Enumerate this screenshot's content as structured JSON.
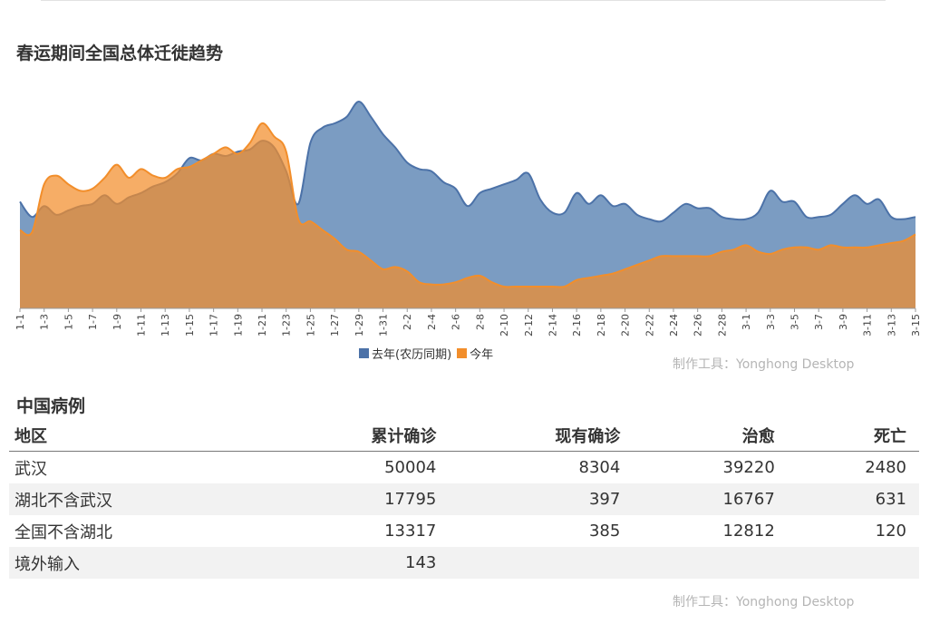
{
  "chart_title": "春运期间全国总体迁徙趋势",
  "watermark": "制作工具：Yonghong Desktop",
  "colors": {
    "last_year": "#4C72A8",
    "this_year": "#F28E2B"
  },
  "chart_data": {
    "type": "area",
    "title": "春运期间全国总体迁徙趋势",
    "x": [
      "1-1",
      "1-2",
      "1-3",
      "1-4",
      "1-5",
      "1-6",
      "1-7",
      "1-8",
      "1-9",
      "1-10",
      "1-11",
      "1-12",
      "1-13",
      "1-14",
      "1-15",
      "1-16",
      "1-17",
      "1-18",
      "1-19",
      "1-20",
      "1-21",
      "1-22",
      "1-23",
      "1-24",
      "1-25",
      "1-26",
      "1-27",
      "1-28",
      "1-29",
      "1-30",
      "1-31",
      "2-1",
      "2-2",
      "2-3",
      "2-4",
      "2-5",
      "2-6",
      "2-7",
      "2-8",
      "2-9",
      "2-10",
      "2-11",
      "2-12",
      "2-13",
      "2-14",
      "2-15",
      "2-16",
      "2-17",
      "2-18",
      "2-19",
      "2-20",
      "2-21",
      "2-22",
      "2-23",
      "2-24",
      "2-25",
      "2-26",
      "2-27",
      "2-28",
      "2-29",
      "3-1",
      "3-2",
      "3-3",
      "3-4",
      "3-5",
      "3-6",
      "3-7",
      "3-8",
      "3-9",
      "3-10",
      "3-11",
      "3-12",
      "3-13",
      "3-14",
      "3-15"
    ],
    "x_tick_labels": [
      "1-1",
      "1-3",
      "1-5",
      "1-7",
      "1-9",
      "1-11",
      "1-13",
      "1-15",
      "1-17",
      "1-19",
      "1-21",
      "1-23",
      "1-25",
      "1-27",
      "1-29",
      "1-31",
      "2-2",
      "2-4",
      "2-6",
      "2-8",
      "2-10",
      "2-12",
      "2-14",
      "2-16",
      "2-18",
      "2-20",
      "2-22",
      "2-24",
      "2-26",
      "2-28",
      "3-1",
      "3-3",
      "3-5",
      "3-7",
      "3-9",
      "3-11",
      "3-13",
      "3-15"
    ],
    "ylim": [
      0,
      100
    ],
    "grid": false,
    "legend": "bottom",
    "series": [
      {
        "name": "去年(农历同期)",
        "values": [
          49,
          42,
          47,
          43,
          45,
          47,
          48,
          52,
          48,
          51,
          53,
          56,
          58,
          62,
          69,
          68,
          71,
          70,
          72,
          73,
          77,
          74,
          63,
          48,
          76,
          83,
          85,
          88,
          95,
          88,
          80,
          74,
          67,
          64,
          63,
          58,
          55,
          47,
          53,
          55,
          57,
          59,
          62,
          50,
          44,
          44,
          53,
          48,
          52,
          47,
          48,
          43,
          41,
          40,
          44,
          48,
          46,
          46,
          42,
          41,
          41,
          44,
          54,
          49,
          49,
          42,
          42,
          43,
          48,
          52,
          48,
          50,
          42,
          41,
          42
        ]
      },
      {
        "name": "今年",
        "values": [
          36,
          35,
          57,
          61,
          57,
          54,
          55,
          60,
          66,
          60,
          64,
          61,
          60,
          64,
          65,
          68,
          71,
          74,
          71,
          76,
          85,
          79,
          72,
          41,
          40,
          36,
          32,
          27,
          26,
          22,
          18,
          19,
          17,
          12,
          11,
          11,
          12,
          14,
          15,
          12,
          10,
          10,
          10,
          10,
          10,
          10,
          13,
          14,
          15,
          16,
          18,
          20,
          22,
          24,
          24,
          24,
          24,
          24,
          26,
          27,
          29,
          26,
          25,
          27,
          28,
          28,
          27,
          29,
          28,
          28,
          28,
          29,
          30,
          31,
          34
        ]
      }
    ]
  },
  "legend": {
    "item1": "去年(农历同期)",
    "item2": "今年"
  },
  "table_title": "中国病例",
  "table": {
    "headers": [
      "地区",
      "累计确诊",
      "现有确诊",
      "治愈",
      "死亡"
    ],
    "rows": [
      [
        "武汉",
        "50004",
        "8304",
        "39220",
        "2480"
      ],
      [
        "湖北不含武汉",
        "17795",
        "397",
        "16767",
        "631"
      ],
      [
        "全国不含湖北",
        "13317",
        "385",
        "12812",
        "120"
      ],
      [
        "境外输入",
        "143",
        "",
        "",
        ""
      ]
    ]
  }
}
